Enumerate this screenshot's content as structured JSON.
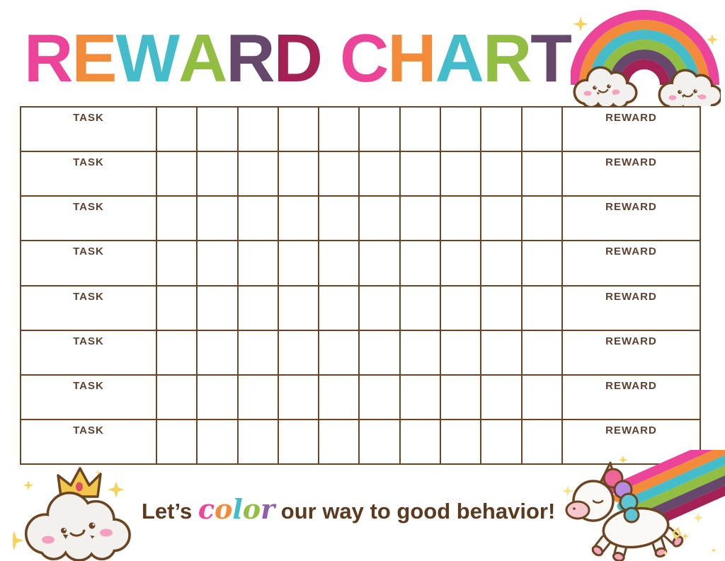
{
  "title": {
    "text": "REWARD CHART",
    "letters": [
      {
        "ch": "R",
        "color": "#ec4499"
      },
      {
        "ch": "E",
        "color": "#f28c3b"
      },
      {
        "ch": "W",
        "color": "#45bcca"
      },
      {
        "ch": "A",
        "color": "#92bf43"
      },
      {
        "ch": "R",
        "color": "#67486d"
      },
      {
        "ch": "D",
        "color": "#a32154"
      },
      {
        "ch": " ",
        "color": "#ffffff"
      },
      {
        "ch": "C",
        "color": "#ec4499"
      },
      {
        "ch": "H",
        "color": "#f28c3b"
      },
      {
        "ch": "A",
        "color": "#45bcca"
      },
      {
        "ch": "R",
        "color": "#92bf43"
      },
      {
        "ch": "T",
        "color": "#67486d"
      }
    ]
  },
  "table": {
    "row_count": 8,
    "day_column_count": 10,
    "task_header": "TASK",
    "reward_header": "REWARD"
  },
  "footer": {
    "prefix": "Let’s ",
    "color_word": [
      {
        "ch": "c",
        "color": "#ec4499"
      },
      {
        "ch": "o",
        "color": "#f28c3b"
      },
      {
        "ch": "l",
        "color": "#45bcca"
      },
      {
        "ch": "o",
        "color": "#92bf43"
      },
      {
        "ch": "r",
        "color": "#8f5fae"
      }
    ],
    "suffix": " our way to good behavior!"
  },
  "illustrations": {
    "top_right": "rainbow-with-smiling-clouds",
    "bottom_left": "smiling-cloud-with-crown",
    "bottom_right": "unicorn-with-rainbow-trail"
  },
  "palette": {
    "pink": "#ec4499",
    "orange": "#f28c3b",
    "teal": "#45bcca",
    "green": "#92bf43",
    "purple": "#67486d",
    "crimson": "#a32154",
    "outline": "#6b4522",
    "label_brown": "#5d4130",
    "text_brown": "#5b3a1d",
    "cloud_fill": "#f3f1ee",
    "cheek": "#f5a0c0",
    "gold": "#f2c64a",
    "gold_light": "#f8d79a",
    "sparkle": "#f6d35e",
    "sparkle_light": "#f9e48f",
    "mane_pink": "#ee6698",
    "mane_purple": "#b78ce0",
    "mane_teal": "#5cc6d6",
    "muzzle": "#f6c7cf",
    "hoof": "#f2a7bc",
    "gem": "#d94f66",
    "body_white": "#fbf9f6",
    "cross_pink": "#f18ab8"
  }
}
